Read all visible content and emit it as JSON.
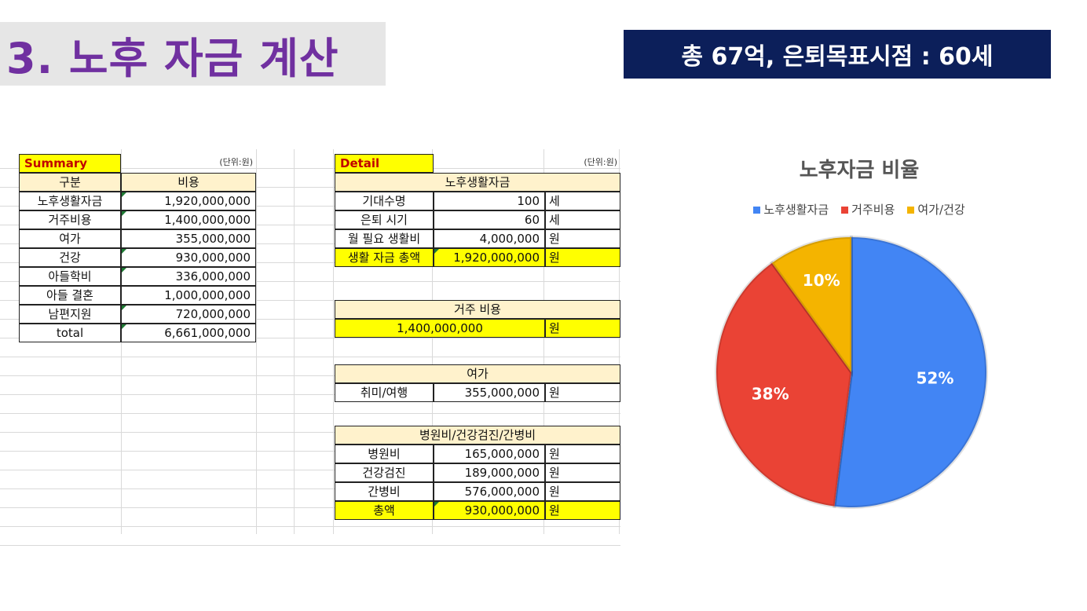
{
  "slide": {
    "title": "3. 노후 자금 계산",
    "banner": "총 67억, 은퇴목표시점 : 60세"
  },
  "summary": {
    "tag": "Summary",
    "unit": "(단위:원)",
    "col_category": "구분",
    "col_cost": "비용",
    "rows": [
      {
        "label": "노후생활자금",
        "value": "1,920,000,000"
      },
      {
        "label": "거주비용",
        "value": "1,400,000,000"
      },
      {
        "label": "여가",
        "value": "355,000,000"
      },
      {
        "label": "건강",
        "value": "930,000,000"
      },
      {
        "label": "아들학비",
        "value": "336,000,000"
      },
      {
        "label": "아들 결혼",
        "value": "1,000,000,000"
      },
      {
        "label": "남편지원",
        "value": "720,000,000"
      },
      {
        "label": "total",
        "value": "6,661,000,000"
      }
    ]
  },
  "detail": {
    "tag": "Detail",
    "unit": "(단위:원)",
    "living": {
      "header": "노후생활자금",
      "rows": [
        {
          "label": "기대수명",
          "value": "100",
          "unit": "세"
        },
        {
          "label": "은퇴 시기",
          "value": "60",
          "unit": "세"
        },
        {
          "label": "월 필요 생활비",
          "value": "4,000,000",
          "unit": "원"
        },
        {
          "label": "생활 자금 총액",
          "value": "1,920,000,000",
          "unit": "원"
        }
      ]
    },
    "housing": {
      "header": "거주 비용",
      "value": "1,400,000,000",
      "unit": "원"
    },
    "leisure": {
      "header": "여가",
      "label": "취미/여행",
      "value": "355,000,000",
      "unit": "원"
    },
    "health": {
      "header": "병원비/건강검진/간병비",
      "rows": [
        {
          "label": "병원비",
          "value": "165,000,000",
          "unit": "원"
        },
        {
          "label": "건강검진",
          "value": "189,000,000",
          "unit": "원"
        },
        {
          "label": "간병비",
          "value": "576,000,000",
          "unit": "원"
        },
        {
          "label": "총액",
          "value": "930,000,000",
          "unit": "원"
        }
      ]
    }
  },
  "chart_data": {
    "type": "pie",
    "title": "노후자금 비율",
    "legend_position": "top",
    "categories": [
      "노후생활자금",
      "거주비용",
      "여가/건강"
    ],
    "values": [
      52,
      38,
      10
    ],
    "labels": [
      "52%",
      "38%",
      "10%"
    ],
    "colors": [
      "#4285f4",
      "#ea4335",
      "#f4b400"
    ]
  },
  "colors": {
    "title_purple": "#7030a0",
    "banner_navy": "#0c1f5a",
    "header_beige": "#fff2cc",
    "highlight_yellow": "#ffff00"
  }
}
